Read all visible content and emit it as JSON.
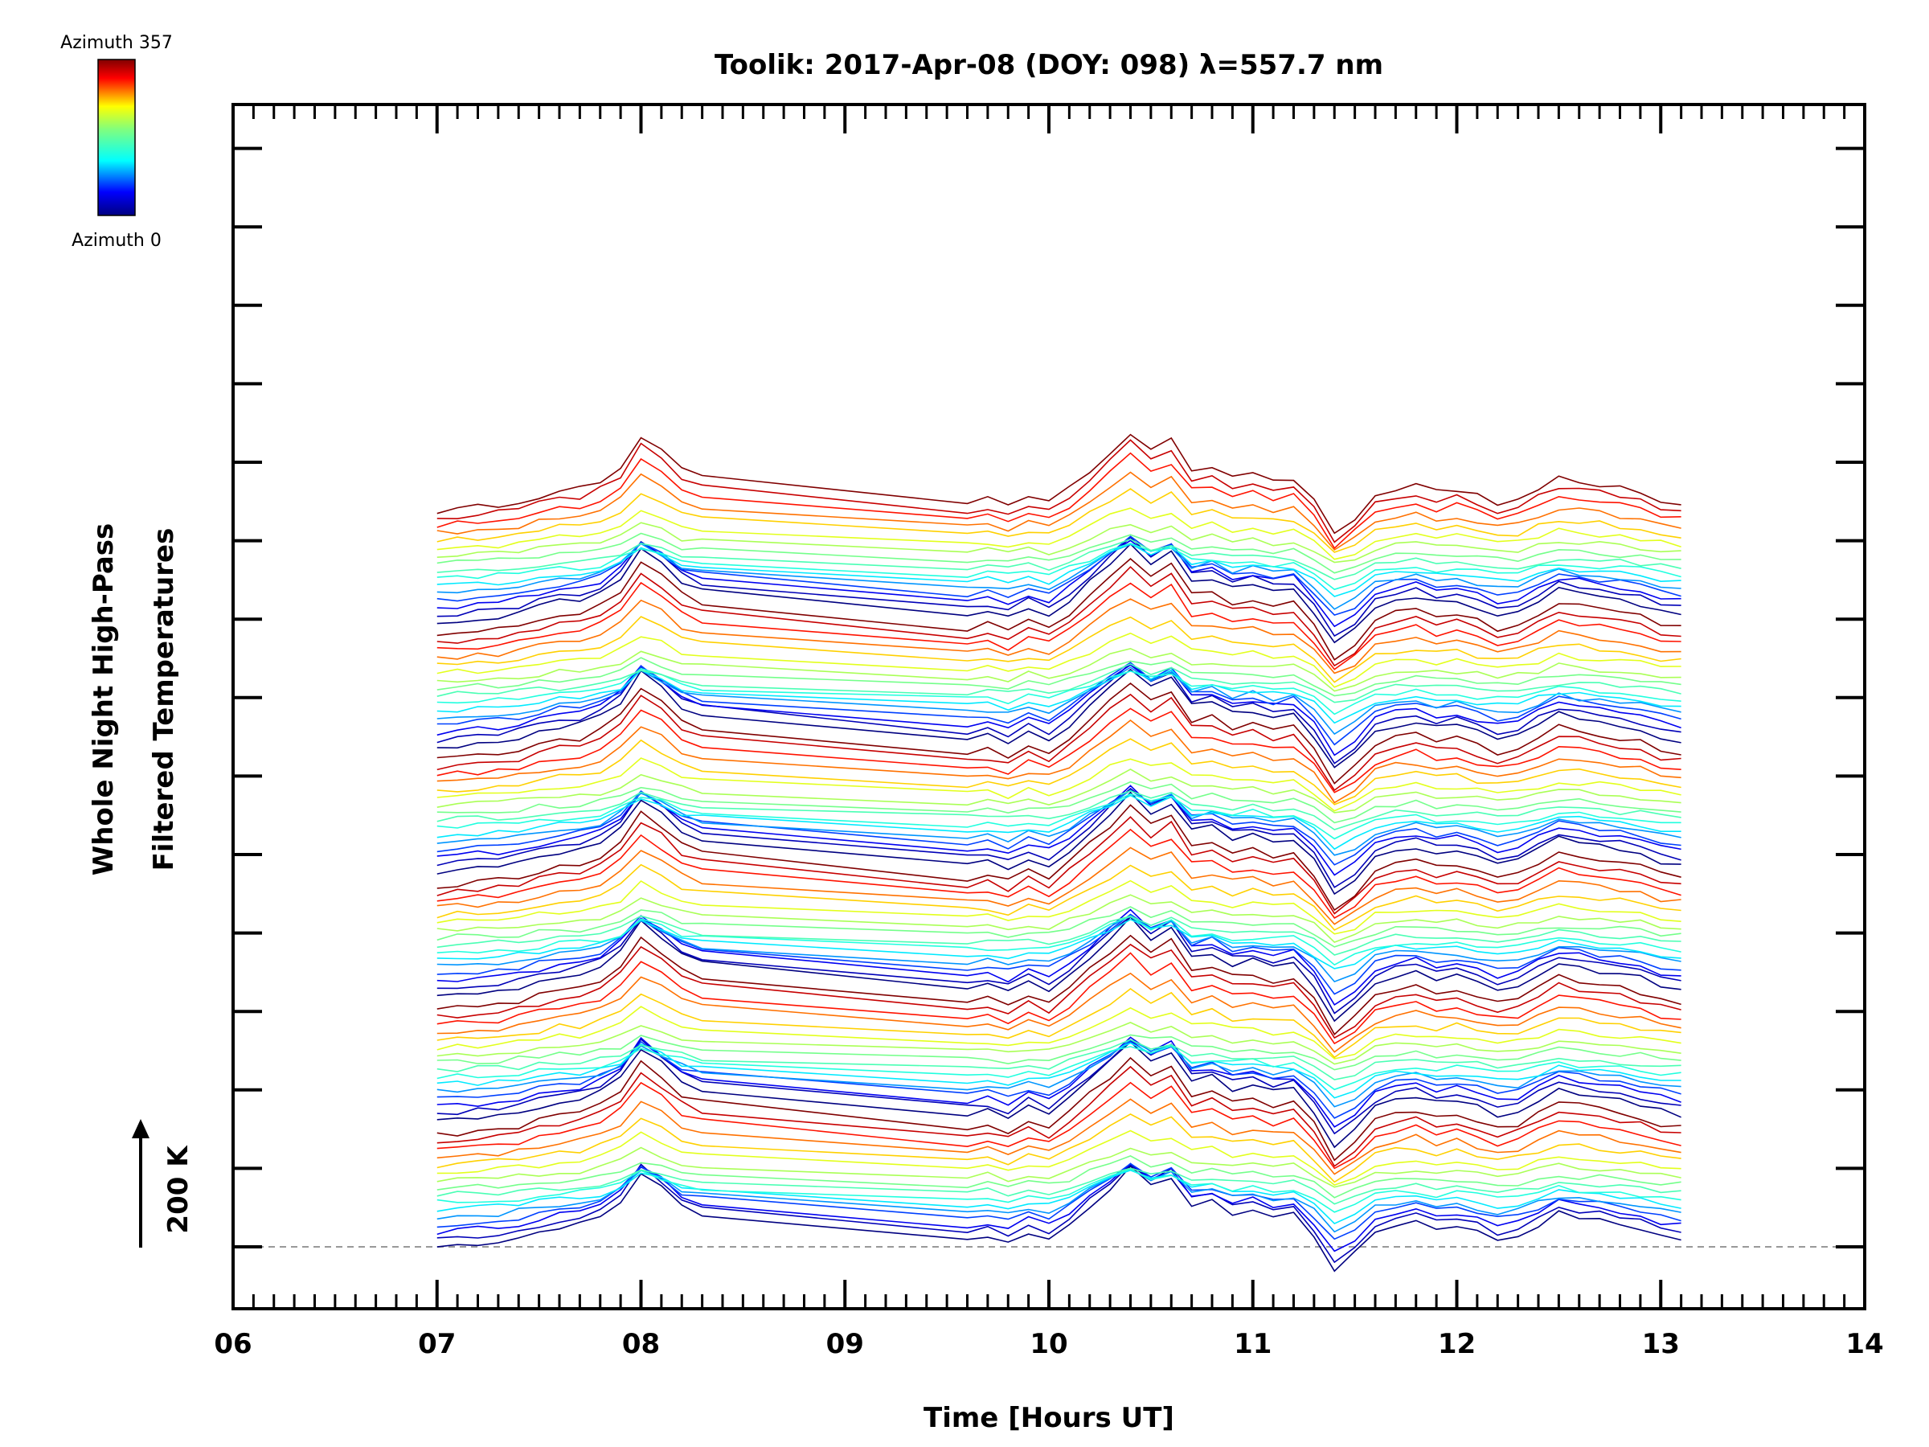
{
  "chart_data": {
    "type": "line",
    "title": "Toolik: 2017-Apr-08 (DOY: 098) λ=557.7 nm",
    "xlabel": "Time [Hours UT]",
    "ylabel_line1": "Whole Night High-Pass",
    "ylabel_line2": "Filtered Temperatures",
    "x_ticks": [
      "06",
      "07",
      "08",
      "09",
      "10",
      "11",
      "12",
      "13",
      "14"
    ],
    "xlim": [
      6,
      14
    ],
    "scale_label": "200 K",
    "colorbar": {
      "top_label": "Azimuth 357",
      "bottom_label": "Azimuth 0",
      "min": 0,
      "max": 357
    },
    "colors": {
      "jet_stops": [
        "#000080",
        "#0000ff",
        "#00ffff",
        "#7fff7f",
        "#ffff00",
        "#ff0000",
        "#800000"
      ]
    },
    "grid": false,
    "legend": "colorbar top-left",
    "series_count": 96,
    "groups": 6,
    "per_group": 16,
    "times": [
      7.0,
      7.1,
      7.2,
      7.3,
      7.4,
      7.5,
      7.6,
      7.7,
      7.8,
      7.9,
      8.0,
      8.1,
      8.2,
      8.3,
      9.6,
      9.7,
      9.8,
      9.9,
      10.0,
      10.1,
      10.2,
      10.3,
      10.4,
      10.5,
      10.6,
      10.7,
      10.8,
      10.9,
      11.0,
      11.1,
      11.2,
      11.3,
      11.4,
      11.5,
      11.6,
      11.7,
      11.8,
      11.9,
      12.0,
      12.1,
      12.2,
      12.3,
      12.4,
      12.5,
      12.6,
      12.7,
      12.8,
      12.9,
      13.0,
      13.1
    ],
    "base_shape_K": [
      0,
      5,
      10,
      15,
      25,
      40,
      55,
      60,
      80,
      120,
      200,
      160,
      110,
      90,
      20,
      30,
      10,
      40,
      20,
      60,
      110,
      160,
      210,
      160,
      190,
      110,
      120,
      90,
      100,
      80,
      90,
      30,
      -60,
      -20,
      40,
      60,
      70,
      50,
      60,
      40,
      20,
      30,
      60,
      90,
      80,
      70,
      60,
      50,
      30,
      20
    ],
    "group_offset_K": 370,
    "series_spacing_K": 22
  }
}
